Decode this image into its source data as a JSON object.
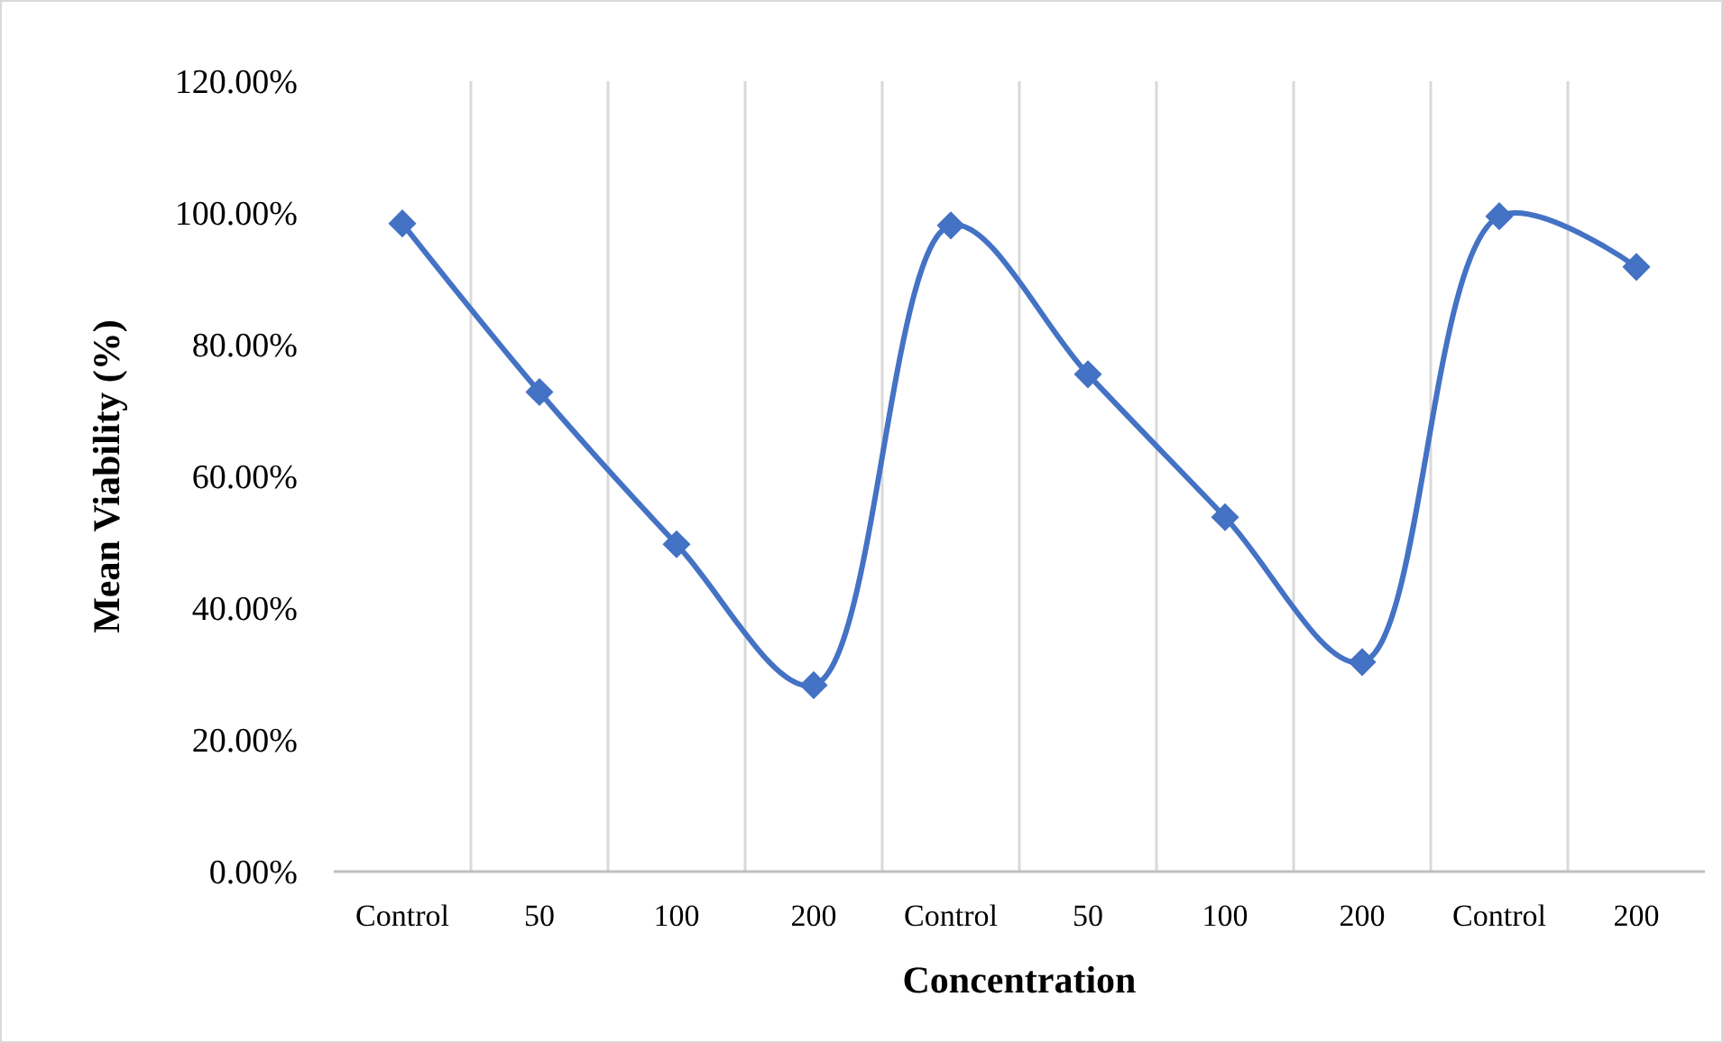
{
  "chart_data": {
    "type": "line",
    "xlabel": "Concentration",
    "ylabel": "Mean Viability (%)",
    "categories": [
      "Control",
      "50",
      "100",
      "200",
      "Control",
      "50",
      "100",
      "200",
      "Control",
      "200"
    ],
    "series": [
      {
        "color": "#4472c4",
        "values": [
          98.4,
          72.8,
          49.7,
          28.3,
          98.1,
          75.5,
          53.8,
          31.8,
          99.5,
          91.8
        ]
      }
    ],
    "ylim": [
      0,
      120
    ],
    "yticks": [
      {
        "value": 0,
        "label": "0.00%"
      },
      {
        "value": 20,
        "label": "20.00%"
      },
      {
        "value": 40,
        "label": "40.00%"
      },
      {
        "value": 60,
        "label": "60.00%"
      },
      {
        "value": 80,
        "label": "80.00%"
      },
      {
        "value": 100,
        "label": "100.00%"
      },
      {
        "value": 120,
        "label": "120.00%"
      }
    ],
    "grid": "x",
    "marker": "diamond",
    "line_style": "solid"
  }
}
